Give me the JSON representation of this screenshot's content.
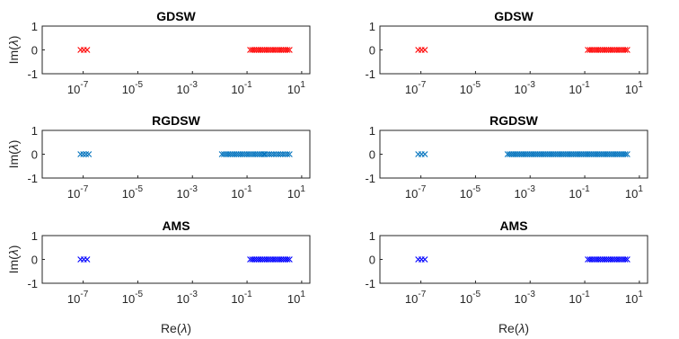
{
  "chart_data": {
    "type": "scatter",
    "x_scale": "log",
    "xlim_exponents": [
      -8.5,
      1.3
    ],
    "ylim": [
      -1,
      1
    ],
    "marker": "x",
    "grid": false,
    "legend": "none",
    "x_ticks": [
      {
        "base": "10",
        "exp": "-7",
        "value": 1e-07
      },
      {
        "base": "10",
        "exp": "-5",
        "value": 1e-05
      },
      {
        "base": "10",
        "exp": "-3",
        "value": 0.001
      },
      {
        "base": "10",
        "exp": "-1",
        "value": 0.1
      },
      {
        "base": "10",
        "exp": "1",
        "value": 10
      }
    ],
    "y_ticks": [
      "-1",
      "0",
      "1"
    ],
    "xlabel": {
      "prefix": "Re(",
      "symbol": "λ",
      "suffix": ")"
    },
    "ylabel": {
      "prefix": "Im(",
      "symbol": "λ",
      "suffix": ")"
    },
    "panels": [
      {
        "title": "GDSW",
        "color": "#ff0000",
        "y": 0,
        "clusters": [
          {
            "from": 8e-08,
            "to": 1.4e-07
          },
          {
            "from": 0.13,
            "to": 3.6
          }
        ]
      },
      {
        "title": "GDSW",
        "color": "#ff0000",
        "y": 0,
        "clusters": [
          {
            "from": 8e-08,
            "to": 1.4e-07
          },
          {
            "from": 0.13,
            "to": 3.6
          }
        ]
      },
      {
        "title": "RGDSW",
        "color": "#0072bd",
        "y": 0,
        "clusters": [
          {
            "from": 8e-08,
            "to": 1.6e-07
          },
          {
            "from": 0.012,
            "to": 0.4
          },
          {
            "from": 0.45,
            "to": 3.6
          }
        ]
      },
      {
        "title": "RGDSW",
        "color": "#0072bd",
        "y": 0,
        "clusters": [
          {
            "from": 8e-08,
            "to": 1.4e-07
          },
          {
            "from": 0.00015,
            "to": 3.6
          }
        ]
      },
      {
        "title": "AMS",
        "color": "#0000ff",
        "y": 0,
        "clusters": [
          {
            "from": 8e-08,
            "to": 1.4e-07
          },
          {
            "from": 0.13,
            "to": 3.6
          }
        ]
      },
      {
        "title": "AMS",
        "color": "#0000ff",
        "y": 0,
        "clusters": [
          {
            "from": 8e-08,
            "to": 1.4e-07
          },
          {
            "from": 0.13,
            "to": 3.6
          }
        ]
      }
    ]
  }
}
